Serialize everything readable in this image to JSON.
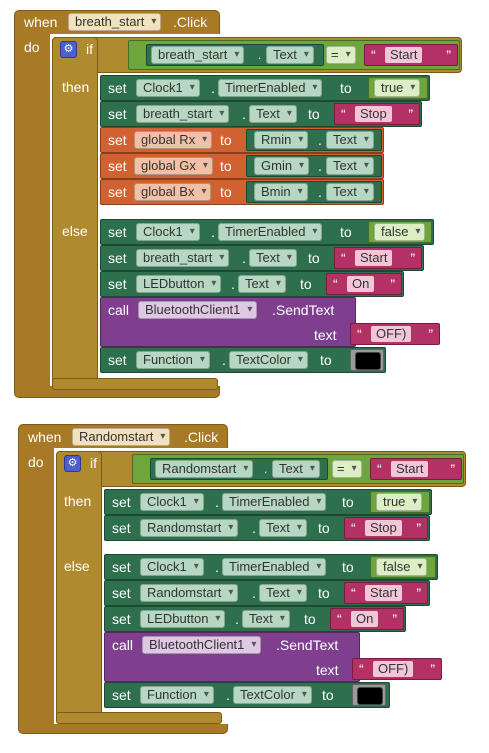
{
  "kw": {
    "when": "when",
    "do": "do",
    "if": "if",
    "then": "then",
    "else": "else",
    "set": "set",
    "to": "to",
    "call": "call",
    "text": "text",
    "eq": "="
  },
  "colors": {
    "event": "#a87a26",
    "component": "#2e6f4e",
    "logic": "#6ea63d",
    "variable": "#d26131",
    "text": "#b33165",
    "procedure": "#7f3f8e"
  },
  "block1": {
    "component": "breath_start",
    "event": ".Click",
    "cond_prop": "Text",
    "cond_value": "Start",
    "then": [
      {
        "comp": "Clock1",
        "prop": "TimerEnabled",
        "value": "true"
      },
      {
        "comp": "breath_start",
        "prop": "Text",
        "value": "Stop"
      },
      {
        "var": "global Rx",
        "comp": "Rmin",
        "prop": "Text"
      },
      {
        "var": "global Gx",
        "comp": "Gmin",
        "prop": "Text"
      },
      {
        "var": "global Bx",
        "comp": "Bmin",
        "prop": "Text"
      }
    ],
    "else": [
      {
        "comp": "Clock1",
        "prop": "TimerEnabled",
        "value": "false"
      },
      {
        "comp": "breath_start",
        "prop": "Text",
        "value": "Start"
      },
      {
        "comp": "LEDbutton",
        "prop": "Text",
        "value": "On"
      },
      {
        "comp": "BluetoothClient1",
        "method": ".SendText",
        "value": "OFF)"
      },
      {
        "comp": "Function",
        "prop": "TextColor",
        "color": "#000000"
      }
    ]
  },
  "block2": {
    "component": "Randomstart",
    "event": ".Click",
    "cond_prop": "Text",
    "cond_value": "Start",
    "then": [
      {
        "comp": "Clock1",
        "prop": "TimerEnabled",
        "value": "true"
      },
      {
        "comp": "Randomstart",
        "prop": "Text",
        "value": "Stop"
      }
    ],
    "else": [
      {
        "comp": "Clock1",
        "prop": "TimerEnabled",
        "value": "false"
      },
      {
        "comp": "Randomstart",
        "prop": "Text",
        "value": "Start"
      },
      {
        "comp": "LEDbutton",
        "prop": "Text",
        "value": "On"
      },
      {
        "comp": "BluetoothClient1",
        "method": ".SendText",
        "value": "OFF)"
      },
      {
        "comp": "Function",
        "prop": "TextColor",
        "color": "#000000"
      }
    ]
  }
}
